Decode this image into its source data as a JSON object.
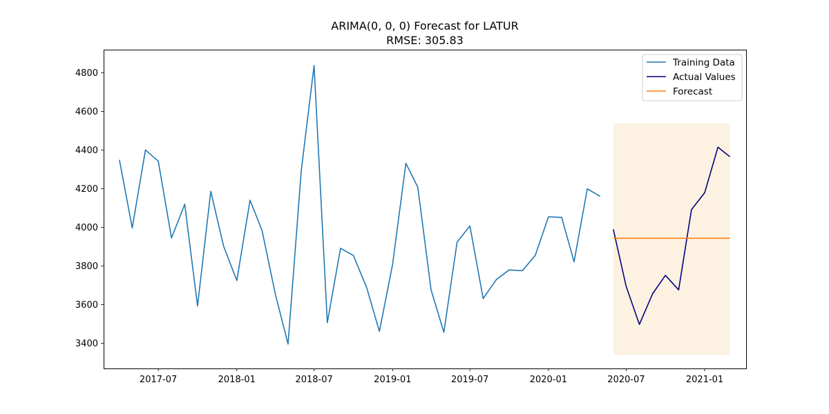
{
  "chart_data": {
    "type": "line",
    "title": "ARIMA(0, 0, 0) Forecast for LATUR",
    "subtitle": "RMSE: 305.83",
    "xlabel": "",
    "ylabel": "",
    "ylim": [
      3270,
      4920
    ],
    "xlim": [
      "2017-02-23",
      "2021-04-08"
    ],
    "yticks": [
      3400,
      3600,
      3800,
      4000,
      4200,
      4400,
      4600,
      4800
    ],
    "xticks": [
      {
        "date": "2017-07-01",
        "label": "2017-07"
      },
      {
        "date": "2018-01-01",
        "label": "2018-01"
      },
      {
        "date": "2018-07-01",
        "label": "2018-07"
      },
      {
        "date": "2019-01-01",
        "label": "2019-01"
      },
      {
        "date": "2019-07-01",
        "label": "2019-07"
      },
      {
        "date": "2020-01-01",
        "label": "2020-01"
      },
      {
        "date": "2020-07-01",
        "label": "2020-07"
      },
      {
        "date": "2021-01-01",
        "label": "2021-01"
      }
    ],
    "grid": false,
    "legend_position": "top-right",
    "forecast_band": {
      "x_start": "2020-06-01",
      "x_end": "2021-03-01",
      "y_low": 3340,
      "y_high": 4540,
      "color": "#fdf2e1"
    },
    "series": [
      {
        "name": "Training Data",
        "color": "#1f77b4",
        "x": [
          "2017-04-01",
          "2017-05-01",
          "2017-06-01",
          "2017-07-01",
          "2017-08-01",
          "2017-09-01",
          "2017-10-01",
          "2017-11-01",
          "2017-12-01",
          "2018-01-01",
          "2018-02-01",
          "2018-03-01",
          "2018-04-01",
          "2018-05-01",
          "2018-06-01",
          "2018-07-01",
          "2018-08-01",
          "2018-09-01",
          "2018-10-01",
          "2018-11-01",
          "2018-12-01",
          "2019-01-01",
          "2019-02-01",
          "2019-03-01",
          "2019-04-01",
          "2019-05-01",
          "2019-06-01",
          "2019-07-01",
          "2019-08-01",
          "2019-09-01",
          "2019-10-01",
          "2019-11-01",
          "2019-12-01",
          "2020-01-01",
          "2020-02-01",
          "2020-03-01",
          "2020-04-01",
          "2020-05-01"
        ],
        "values": [
          4350,
          3997,
          4401,
          4343,
          3945,
          4120,
          3593,
          4187,
          3903,
          3725,
          4141,
          3985,
          3657,
          3396,
          4295,
          4838,
          3507,
          3892,
          3855,
          3690,
          3462,
          3810,
          4332,
          4208,
          3677,
          3457,
          3924,
          4008,
          3632,
          3730,
          3780,
          3776,
          3855,
          4055,
          4052,
          3822,
          4200,
          4161
        ]
      },
      {
        "name": "Actual Values",
        "color": "#000080",
        "x": [
          "2020-06-01",
          "2020-07-01",
          "2020-08-01",
          "2020-09-01",
          "2020-10-01",
          "2020-11-01",
          "2020-12-01",
          "2021-01-01",
          "2021-02-01",
          "2021-03-01"
        ],
        "values": [
          3990,
          3695,
          3498,
          3657,
          3752,
          3677,
          4092,
          4180,
          4415,
          4366
        ]
      },
      {
        "name": "Forecast",
        "color": "#ff7f0e",
        "x": [
          "2020-06-01",
          "2020-07-01",
          "2020-08-01",
          "2020-09-01",
          "2020-10-01",
          "2020-11-01",
          "2020-12-01",
          "2021-01-01",
          "2021-02-01",
          "2021-03-01"
        ],
        "values": [
          3944,
          3944,
          3944,
          3944,
          3944,
          3944,
          3944,
          3944,
          3944,
          3944
        ]
      }
    ]
  }
}
